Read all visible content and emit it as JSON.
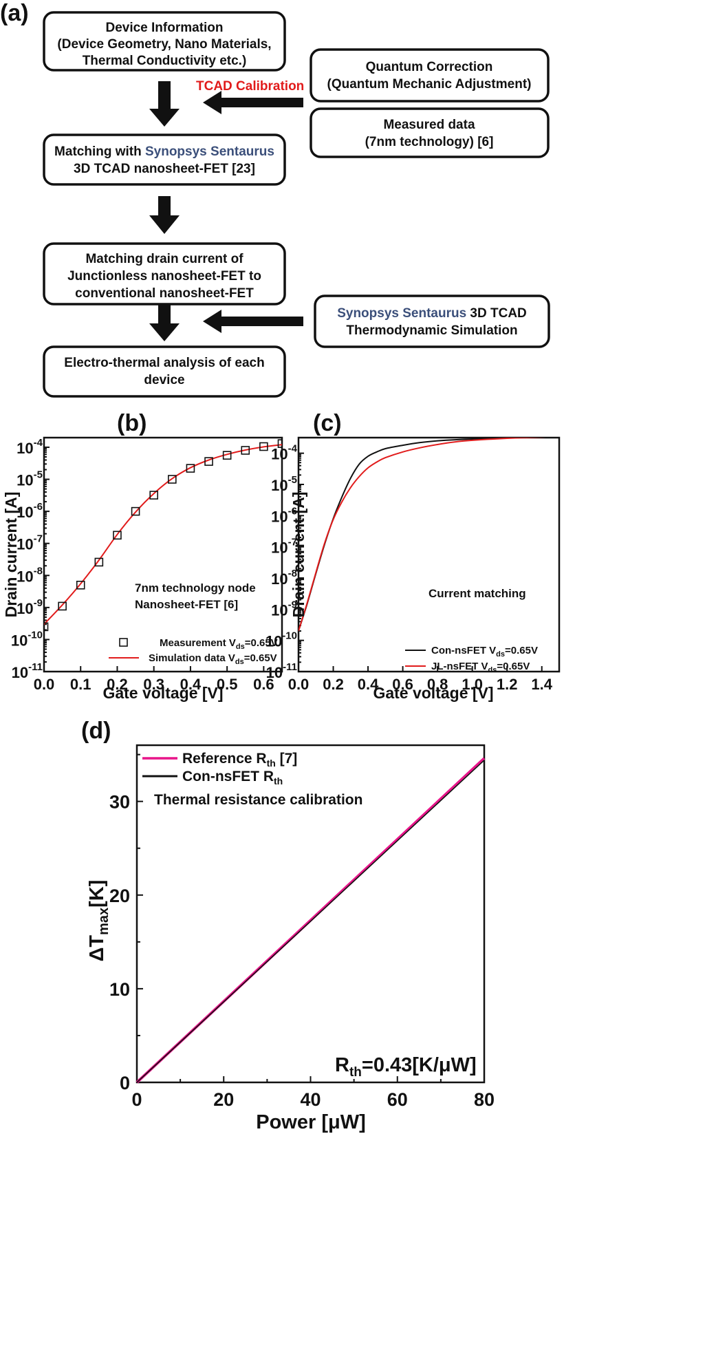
{
  "panel_a": {
    "label": "(a)",
    "box1": {
      "lines": [
        "Device Information",
        "(Device Geometry, Nano Materials,",
        "Thermal Conductivity etc.)"
      ]
    },
    "box2": {
      "prefix": "Matching with ",
      "highlight": "Synopsys Sentaurus",
      "line2": "3D TCAD nanosheet-FET [23]"
    },
    "box3": {
      "lines": [
        "Matching drain current of",
        "Junctionless nanosheet-FET to",
        "conventional nanosheet-FET"
      ]
    },
    "box4": {
      "lines": [
        "Electro-thermal analysis of each",
        "device"
      ]
    },
    "box5": {
      "lines": [
        "Quantum Correction",
        "(Quantum Mechanic Adjustment)"
      ]
    },
    "box6": {
      "lines": [
        "Measured data",
        "(7nm technology) [6]"
      ]
    },
    "box7": {
      "highlight": "Synopsys Sentaurus",
      "suffix": " 3D TCAD",
      "line2": "Thermodynamic Simulation"
    },
    "calibration_label": "TCAD Calibration"
  },
  "colors": {
    "red": "#e11b1b",
    "pink": "#e8158a",
    "blue_text": "#3b4f7a",
    "black": "#111111"
  },
  "chart_data": [
    {
      "id": "b",
      "panel_label": "(b)",
      "type": "scatter",
      "xlabel": "Gate voltage [V]",
      "ylabel": "Drain current [A]",
      "xlim": [
        0,
        0.65
      ],
      "ylim_log10": [
        -11,
        -3.7
      ],
      "yscale": "log",
      "xticks": [
        "0.0",
        "0.1",
        "0.2",
        "0.3",
        "0.4",
        "0.5",
        "0.6"
      ],
      "yticks": [
        {
          "base": "10",
          "exp": "-11"
        },
        {
          "base": "10",
          "exp": "-10"
        },
        {
          "base": "10",
          "exp": "-9"
        },
        {
          "base": "10",
          "exp": "-8"
        },
        {
          "base": "10",
          "exp": "-7"
        },
        {
          "base": "10",
          "exp": "-6"
        },
        {
          "base": "10",
          "exp": "-5"
        },
        {
          "base": "10",
          "exp": "-4"
        }
      ],
      "annotation": [
        "7nm technology node",
        "Nanosheet-FET [6]"
      ],
      "series": [
        {
          "name": "Measurement V_ds=0.65V",
          "legend_main": "Measurement V",
          "legend_sub": "ds",
          "legend_tail": "=0.65V",
          "style": "square-marker",
          "color": "#111111",
          "x": [
            0.0,
            0.05,
            0.1,
            0.15,
            0.2,
            0.25,
            0.3,
            0.35,
            0.4,
            0.45,
            0.5,
            0.55,
            0.6,
            0.65
          ],
          "y": [
            2.5e-10,
            1.1e-09,
            5e-09,
            2.6e-08,
            1.8e-07,
            1e-06,
            3.2e-06,
            1e-05,
            2.2e-05,
            3.6e-05,
            5.6e-05,
            8e-05,
            0.000105,
            0.00013
          ]
        },
        {
          "name": "Simulation data V_ds=0.65V",
          "legend_main": "Simulation data V",
          "legend_sub": "ds",
          "legend_tail": "=0.65V",
          "style": "line",
          "color": "#e11b1b",
          "x": [
            0.0,
            0.05,
            0.1,
            0.15,
            0.2,
            0.25,
            0.3,
            0.35,
            0.4,
            0.45,
            0.5,
            0.55,
            0.6,
            0.65
          ],
          "y": [
            3e-10,
            1.2e-09,
            5.5e-09,
            3e-08,
            1.9e-07,
            9.5e-07,
            3.6e-06,
            1.05e-05,
            2.3e-05,
            4e-05,
            6e-05,
            8.2e-05,
            0.000103,
            0.00012
          ]
        }
      ]
    },
    {
      "id": "c",
      "panel_label": "(c)",
      "type": "line",
      "xlabel": "Gate voltage [V]",
      "ylabel": "Drain current [A]",
      "xlim": [
        0,
        1.5
      ],
      "ylim_log10": [
        -11,
        -3.5
      ],
      "yscale": "log",
      "xticks": [
        "0.0",
        "0.2",
        "0.4",
        "0.6",
        "0.8",
        "1.0",
        "1.2",
        "1.4"
      ],
      "yticks": [
        {
          "base": "10",
          "exp": "-11"
        },
        {
          "base": "10",
          "exp": "-10"
        },
        {
          "base": "10",
          "exp": "-9"
        },
        {
          "base": "10",
          "exp": "-8"
        },
        {
          "base": "10",
          "exp": "-7"
        },
        {
          "base": "10",
          "exp": "-6"
        },
        {
          "base": "10",
          "exp": "-5"
        },
        {
          "base": "10",
          "exp": "-4"
        }
      ],
      "annotation": [
        "Current matching"
      ],
      "series": [
        {
          "name": "Con-nsFET V_ds=0.65V",
          "legend_main": "Con-nsFET V",
          "legend_sub": "ds",
          "legend_tail": "=0.65V",
          "style": "line",
          "color": "#111111",
          "x": [
            0.0,
            0.05,
            0.1,
            0.15,
            0.2,
            0.25,
            0.3,
            0.35,
            0.4,
            0.45,
            0.5,
            0.6,
            0.7,
            0.8,
            0.9,
            1.0,
            1.2,
            1.4,
            1.5
          ],
          "y": [
            2e-10,
            1.5e-09,
            1.4e-08,
            1.2e-07,
            8e-07,
            4e-06,
            1.6e-05,
            4.5e-05,
            8e-05,
            0.00011,
            0.00014,
            0.00018,
            0.00022,
            0.00025,
            0.00027,
            0.000285,
            0.00031,
            0.00033,
            0.00034
          ]
        },
        {
          "name": "JL-nsFET V_ds=0.65V",
          "legend_main": "JL-nsFET V",
          "legend_sub": "ds",
          "legend_tail": "=0.65V",
          "style": "line",
          "color": "#e11b1b",
          "x": [
            0.0,
            0.05,
            0.1,
            0.15,
            0.2,
            0.25,
            0.3,
            0.35,
            0.4,
            0.45,
            0.5,
            0.6,
            0.7,
            0.8,
            0.9,
            1.0,
            1.2,
            1.4,
            1.5
          ],
          "y": [
            2e-10,
            1.6e-09,
            1.5e-08,
            1.3e-07,
            7.5e-07,
            2.8e-06,
            8e-06,
            1.8e-05,
            3.4e-05,
            5.2e-05,
            7.2e-05,
            0.00011,
            0.00015,
            0.00019,
            0.00023,
            0.00026,
            0.0003,
            0.00033,
            0.00034
          ]
        }
      ]
    },
    {
      "id": "d",
      "panel_label": "(d)",
      "type": "line",
      "xlabel": "Power [μW]",
      "ylabel_main": "ΔT",
      "ylabel_sub": "max",
      "ylabel_tail": "[K]",
      "xlim": [
        0,
        80
      ],
      "ylim": [
        0,
        36
      ],
      "yscale": "linear",
      "xticks": [
        0,
        20,
        40,
        60,
        80
      ],
      "yticks": [
        0,
        10,
        20,
        30
      ],
      "annotation": "Thermal resistance calibration",
      "result_main": "R",
      "result_sub": "th",
      "result_tail": "=0.43[K/μW]",
      "series": [
        {
          "name": "Reference R_th [7]",
          "legend_main": "Reference R",
          "legend_sub": "th",
          "legend_tail": " [7]",
          "color": "#e8158a",
          "x": [
            0,
            80
          ],
          "y": [
            0,
            34.6
          ]
        },
        {
          "name": "Con-nsFET R_th",
          "legend_main": "Con-nsFET R",
          "legend_sub": "th",
          "legend_tail": "",
          "color": "#111111",
          "x": [
            0,
            80
          ],
          "y": [
            0,
            34.4
          ]
        }
      ]
    }
  ]
}
